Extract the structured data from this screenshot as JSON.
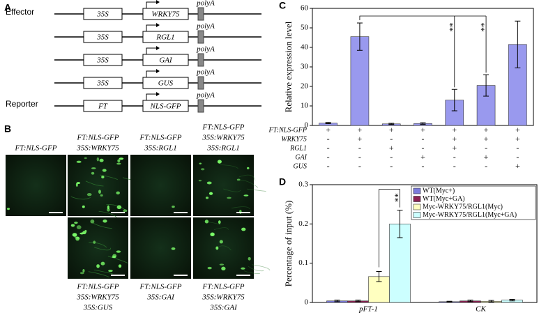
{
  "panel_a": {
    "label": "A",
    "constructs": [
      {
        "role": "Effector",
        "promoter": "35S",
        "gene": "WRKY75",
        "terminator": "polyA"
      },
      {
        "promoter": "35S",
        "gene": "RGL1",
        "terminator": "polyA"
      },
      {
        "promoter": "35S",
        "gene": "GAI",
        "terminator": "polyA"
      },
      {
        "promoter": "35S",
        "gene": "GUS",
        "terminator": "polyA"
      },
      {
        "role": "Reporter",
        "promoter": "FT",
        "gene": "NLS-GFP",
        "terminator": "polyA"
      }
    ]
  },
  "panel_b": {
    "label": "B",
    "top_row": [
      {
        "caption": [
          "FT:NLS-GFP"
        ]
      },
      {
        "caption": [
          "FT:NLS-GFP",
          "35S:WRKY75"
        ]
      },
      {
        "caption": [
          "FT:NLS-GFP",
          "35S:RGL1"
        ]
      },
      {
        "caption": [
          "FT:NLS-GFP",
          "35S:WRKY75",
          "35S:RGL1"
        ]
      }
    ],
    "bottom_row": [
      {
        "caption": [
          "FT:NLS-GFP",
          "35S:WRKY75",
          "35S:GUS"
        ]
      },
      {
        "caption": [
          "FT:NLS-GFP",
          "35S:GAI"
        ]
      },
      {
        "caption": [
          "FT:NLS-GFP",
          "35S:WRKY75",
          "35S:GAI"
        ]
      }
    ]
  },
  "chart_data": [
    {
      "type": "bar",
      "label": "C",
      "ylabel": "Relative expression level",
      "ylim": [
        0,
        60
      ],
      "yticks": [
        0,
        10,
        20,
        30,
        40,
        50,
        60
      ],
      "color": "#9999ee",
      "values": [
        1.2,
        45.5,
        0.8,
        1.0,
        13,
        20.5,
        41.5
      ],
      "errors": [
        0.3,
        7,
        0.3,
        0.4,
        5.5,
        5.5,
        12
      ],
      "annotations": [
        "**",
        "**"
      ],
      "conditions": [
        {
          "name": "FT:NLS-GFP",
          "marks": [
            "+",
            "+",
            "+",
            "+",
            "+",
            "+",
            "+"
          ]
        },
        {
          "name": "WRKY75",
          "marks": [
            "-",
            "+",
            "-",
            "-",
            "+",
            "+",
            "+"
          ]
        },
        {
          "name": "RGL1",
          "marks": [
            "-",
            "-",
            "+",
            "-",
            "+",
            "-",
            "-"
          ]
        },
        {
          "name": "GAI",
          "marks": [
            "-",
            "-",
            "-",
            "+",
            "-",
            "+",
            "-"
          ]
        },
        {
          "name": "GUS",
          "marks": [
            "-",
            "-",
            "-",
            "-",
            "-",
            "-",
            "+"
          ]
        }
      ]
    },
    {
      "type": "bar",
      "label": "D",
      "ylabel": "Percentage of input (%)",
      "ylim": [
        0,
        0.3
      ],
      "yticks": [
        0,
        0.1,
        0.2,
        0.3
      ],
      "categories": [
        "pFT-1",
        "CK"
      ],
      "legend": "upper right",
      "annotations": [
        "**"
      ],
      "series": [
        {
          "name": "WT(Myc+)",
          "color": "#7b7bdc",
          "values": [
            0.004,
            0.002
          ],
          "errors": [
            0.002,
            0.001
          ]
        },
        {
          "name": "WT(Myc+GA)",
          "color": "#8b2252",
          "values": [
            0.004,
            0.004
          ],
          "errors": [
            0.002,
            0.002
          ]
        },
        {
          "name": "Myc-WRKY75/RGL1(Myc)",
          "color": "#ffffc0",
          "values": [
            0.066,
            0.003
          ],
          "errors": [
            0.013,
            0.002
          ]
        },
        {
          "name": "Myc-WRKY75/RGL1(Myc+GA)",
          "color": "#ccffff",
          "values": [
            0.2,
            0.006
          ],
          "errors": [
            0.035,
            0.002
          ]
        }
      ]
    }
  ]
}
